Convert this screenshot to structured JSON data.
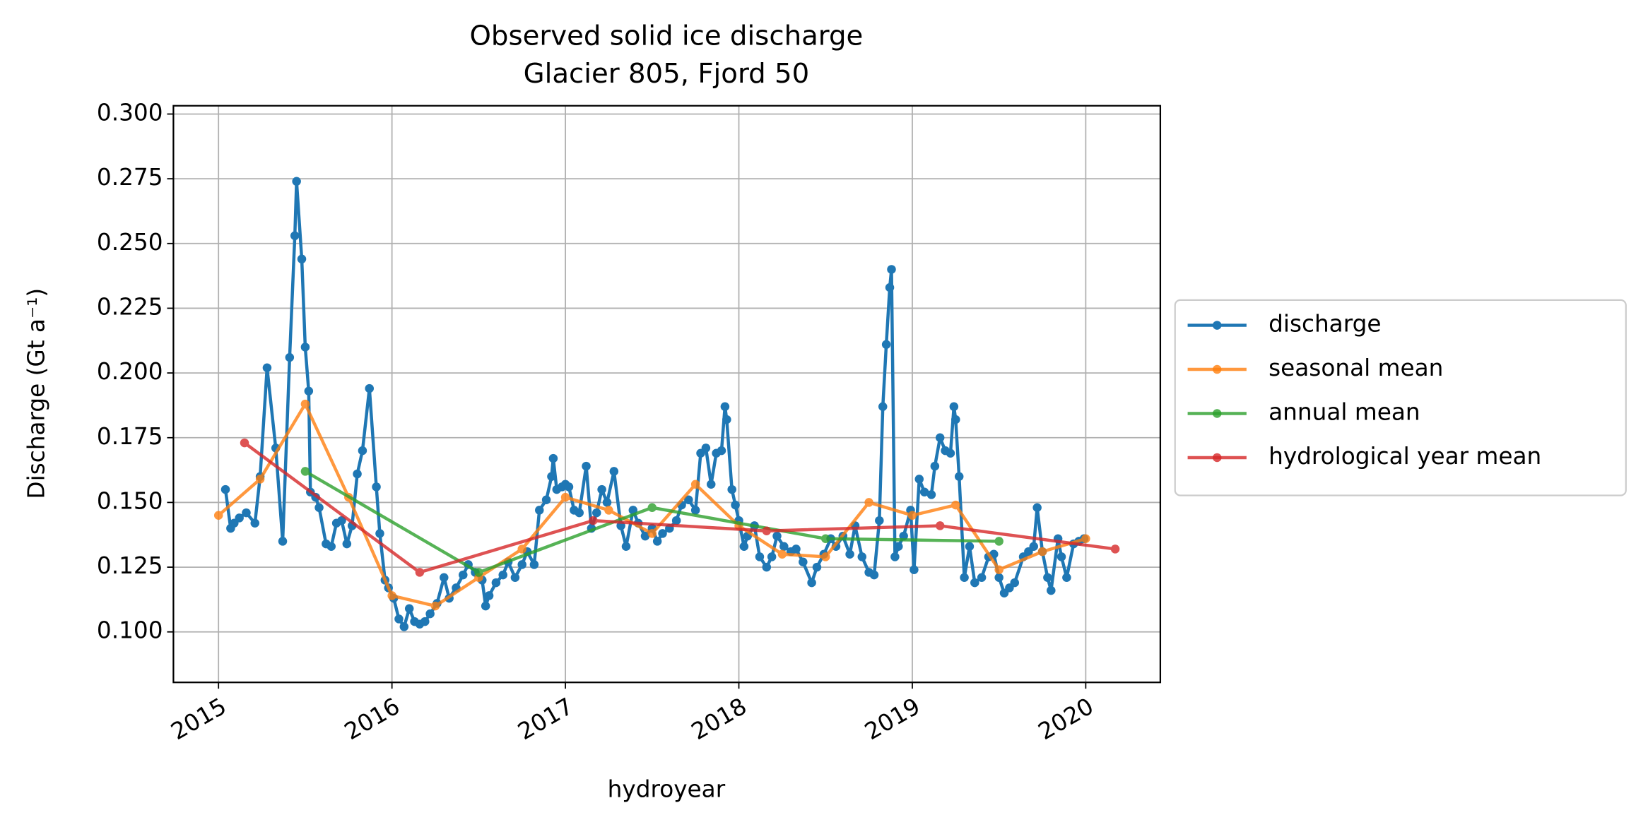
{
  "chart_data": {
    "type": "line",
    "title": "Observed solid ice discharge",
    "subtitle": "Glacier 805, Fjord 50",
    "x_label": "hydroyear",
    "y_label": "Discharge (Gt a⁻¹)",
    "xlim": [
      2014.74,
      2020.43
    ],
    "ylim": [
      0.0805,
      0.3032
    ],
    "xticks": [
      2015,
      2016,
      2017,
      2018,
      2019,
      2020
    ],
    "yticks": [
      {
        "value": 0.1,
        "label": "0.100"
      },
      {
        "value": 0.125,
        "label": "0.125"
      },
      {
        "value": 0.15,
        "label": "0.150"
      },
      {
        "value": 0.175,
        "label": "0.175"
      },
      {
        "value": 0.2,
        "label": "0.200"
      },
      {
        "value": 0.225,
        "label": "0.225"
      },
      {
        "value": 0.25,
        "label": "0.250"
      },
      {
        "value": 0.275,
        "label": "0.275"
      },
      {
        "value": 0.3,
        "label": "0.300"
      }
    ],
    "grid": true,
    "legend": "outside right",
    "series": [
      {
        "name": "discharge",
        "color": "#1f77b4",
        "x": [
          2015.04,
          2015.07,
          2015.09,
          2015.12,
          2015.16,
          2015.21,
          2015.24,
          2015.28,
          2015.33,
          2015.37,
          2015.41,
          2015.44,
          2015.45,
          2015.48,
          2015.5,
          2015.52,
          2015.53,
          2015.56,
          2015.58,
          2015.62,
          2015.65,
          2015.68,
          2015.71,
          2015.74,
          2015.77,
          2015.8,
          2015.83,
          2015.87,
          2015.91,
          2015.93,
          2015.96,
          2015.98,
          2016.01,
          2016.04,
          2016.07,
          2016.1,
          2016.13,
          2016.16,
          2016.19,
          2016.22,
          2016.26,
          2016.3,
          2016.33,
          2016.37,
          2016.41,
          2016.44,
          2016.48,
          2016.52,
          2016.54,
          2016.56,
          2016.6,
          2016.64,
          2016.67,
          2016.71,
          2016.75,
          2016.78,
          2016.82,
          2016.85,
          2016.89,
          2016.92,
          2016.93,
          2016.95,
          2016.98,
          2017.0,
          2017.02,
          2017.05,
          2017.08,
          2017.12,
          2017.15,
          2017.18,
          2017.21,
          2017.24,
          2017.28,
          2017.32,
          2017.35,
          2017.39,
          2017.42,
          2017.46,
          2017.5,
          2017.53,
          2017.56,
          2017.6,
          2017.64,
          2017.67,
          2017.71,
          2017.75,
          2017.78,
          2017.81,
          2017.84,
          2017.87,
          2017.9,
          2017.92,
          2017.93,
          2017.96,
          2017.98,
          2018.0,
          2018.03,
          2018.05,
          2018.09,
          2018.12,
          2018.16,
          2018.19,
          2018.22,
          2018.26,
          2018.3,
          2018.33,
          2018.37,
          2018.42,
          2018.45,
          2018.49,
          2018.53,
          2018.56,
          2018.6,
          2018.64,
          2018.67,
          2018.71,
          2018.75,
          2018.78,
          2018.81,
          2018.83,
          2018.85,
          2018.87,
          2018.88,
          2018.9,
          2018.92,
          2018.95,
          2018.99,
          2019.01,
          2019.04,
          2019.07,
          2019.11,
          2019.13,
          2019.16,
          2019.19,
          2019.22,
          2019.24,
          2019.25,
          2019.27,
          2019.3,
          2019.33,
          2019.36,
          2019.4,
          2019.44,
          2019.47,
          2019.5,
          2019.53,
          2019.56,
          2019.59,
          2019.64,
          2019.67,
          2019.7,
          2019.72,
          2019.75,
          2019.78,
          2019.8,
          2019.84,
          2019.86,
          2019.89,
          2019.93,
          2019.96,
          2019.99
        ],
        "values": [
          0.155,
          0.14,
          0.142,
          0.144,
          0.146,
          0.142,
          0.16,
          0.202,
          0.171,
          0.135,
          0.206,
          0.253,
          0.274,
          0.244,
          0.21,
          0.193,
          0.154,
          0.152,
          0.148,
          0.134,
          0.133,
          0.142,
          0.143,
          0.134,
          0.141,
          0.161,
          0.17,
          0.194,
          0.156,
          0.138,
          0.12,
          0.117,
          0.113,
          0.105,
          0.102,
          0.109,
          0.104,
          0.103,
          0.104,
          0.107,
          0.111,
          0.121,
          0.113,
          0.117,
          0.122,
          0.126,
          0.123,
          0.12,
          0.11,
          0.114,
          0.119,
          0.122,
          0.127,
          0.121,
          0.126,
          0.131,
          0.126,
          0.147,
          0.151,
          0.16,
          0.167,
          0.155,
          0.156,
          0.157,
          0.156,
          0.147,
          0.146,
          0.164,
          0.14,
          0.146,
          0.155,
          0.15,
          0.162,
          0.141,
          0.133,
          0.147,
          0.142,
          0.137,
          0.14,
          0.135,
          0.138,
          0.14,
          0.143,
          0.149,
          0.151,
          0.147,
          0.169,
          0.171,
          0.157,
          0.169,
          0.17,
          0.187,
          0.182,
          0.155,
          0.149,
          0.143,
          0.133,
          0.137,
          0.141,
          0.129,
          0.125,
          0.129,
          0.137,
          0.133,
          0.131,
          0.132,
          0.127,
          0.119,
          0.125,
          0.13,
          0.136,
          0.133,
          0.137,
          0.13,
          0.141,
          0.129,
          0.123,
          0.122,
          0.143,
          0.187,
          0.211,
          0.233,
          0.24,
          0.129,
          0.133,
          0.137,
          0.147,
          0.124,
          0.159,
          0.154,
          0.153,
          0.164,
          0.175,
          0.17,
          0.169,
          0.187,
          0.182,
          0.16,
          0.121,
          0.133,
          0.119,
          0.121,
          0.129,
          0.13,
          0.121,
          0.115,
          0.117,
          0.119,
          0.129,
          0.131,
          0.133,
          0.148,
          0.131,
          0.121,
          0.116,
          0.136,
          0.129,
          0.121,
          0.134,
          0.135,
          0.136
        ]
      },
      {
        "name": "seasonal mean",
        "color": "#ff7f0e",
        "x": [
          2015.0,
          2015.24,
          2015.5,
          2015.75,
          2016.0,
          2016.25,
          2016.5,
          2016.75,
          2017.0,
          2017.25,
          2017.5,
          2017.75,
          2018.0,
          2018.25,
          2018.5,
          2018.75,
          2019.0,
          2019.25,
          2019.5,
          2019.75,
          2020.0
        ],
        "values": [
          0.145,
          0.159,
          0.188,
          0.152,
          0.114,
          0.11,
          0.121,
          0.132,
          0.152,
          0.147,
          0.138,
          0.157,
          0.141,
          0.13,
          0.129,
          0.15,
          0.145,
          0.149,
          0.124,
          0.131,
          0.136
        ]
      },
      {
        "name": "annual mean",
        "color": "#2ca02c",
        "x": [
          2015.5,
          2016.5,
          2017.5,
          2018.5,
          2019.5
        ],
        "values": [
          0.162,
          0.123,
          0.148,
          0.136,
          0.135
        ]
      },
      {
        "name": "hydrological year mean",
        "color": "#d62728",
        "x": [
          2015.15,
          2016.16,
          2017.16,
          2018.16,
          2019.16,
          2020.17
        ],
        "values": [
          0.173,
          0.123,
          0.143,
          0.139,
          0.141,
          0.132
        ]
      }
    ]
  }
}
